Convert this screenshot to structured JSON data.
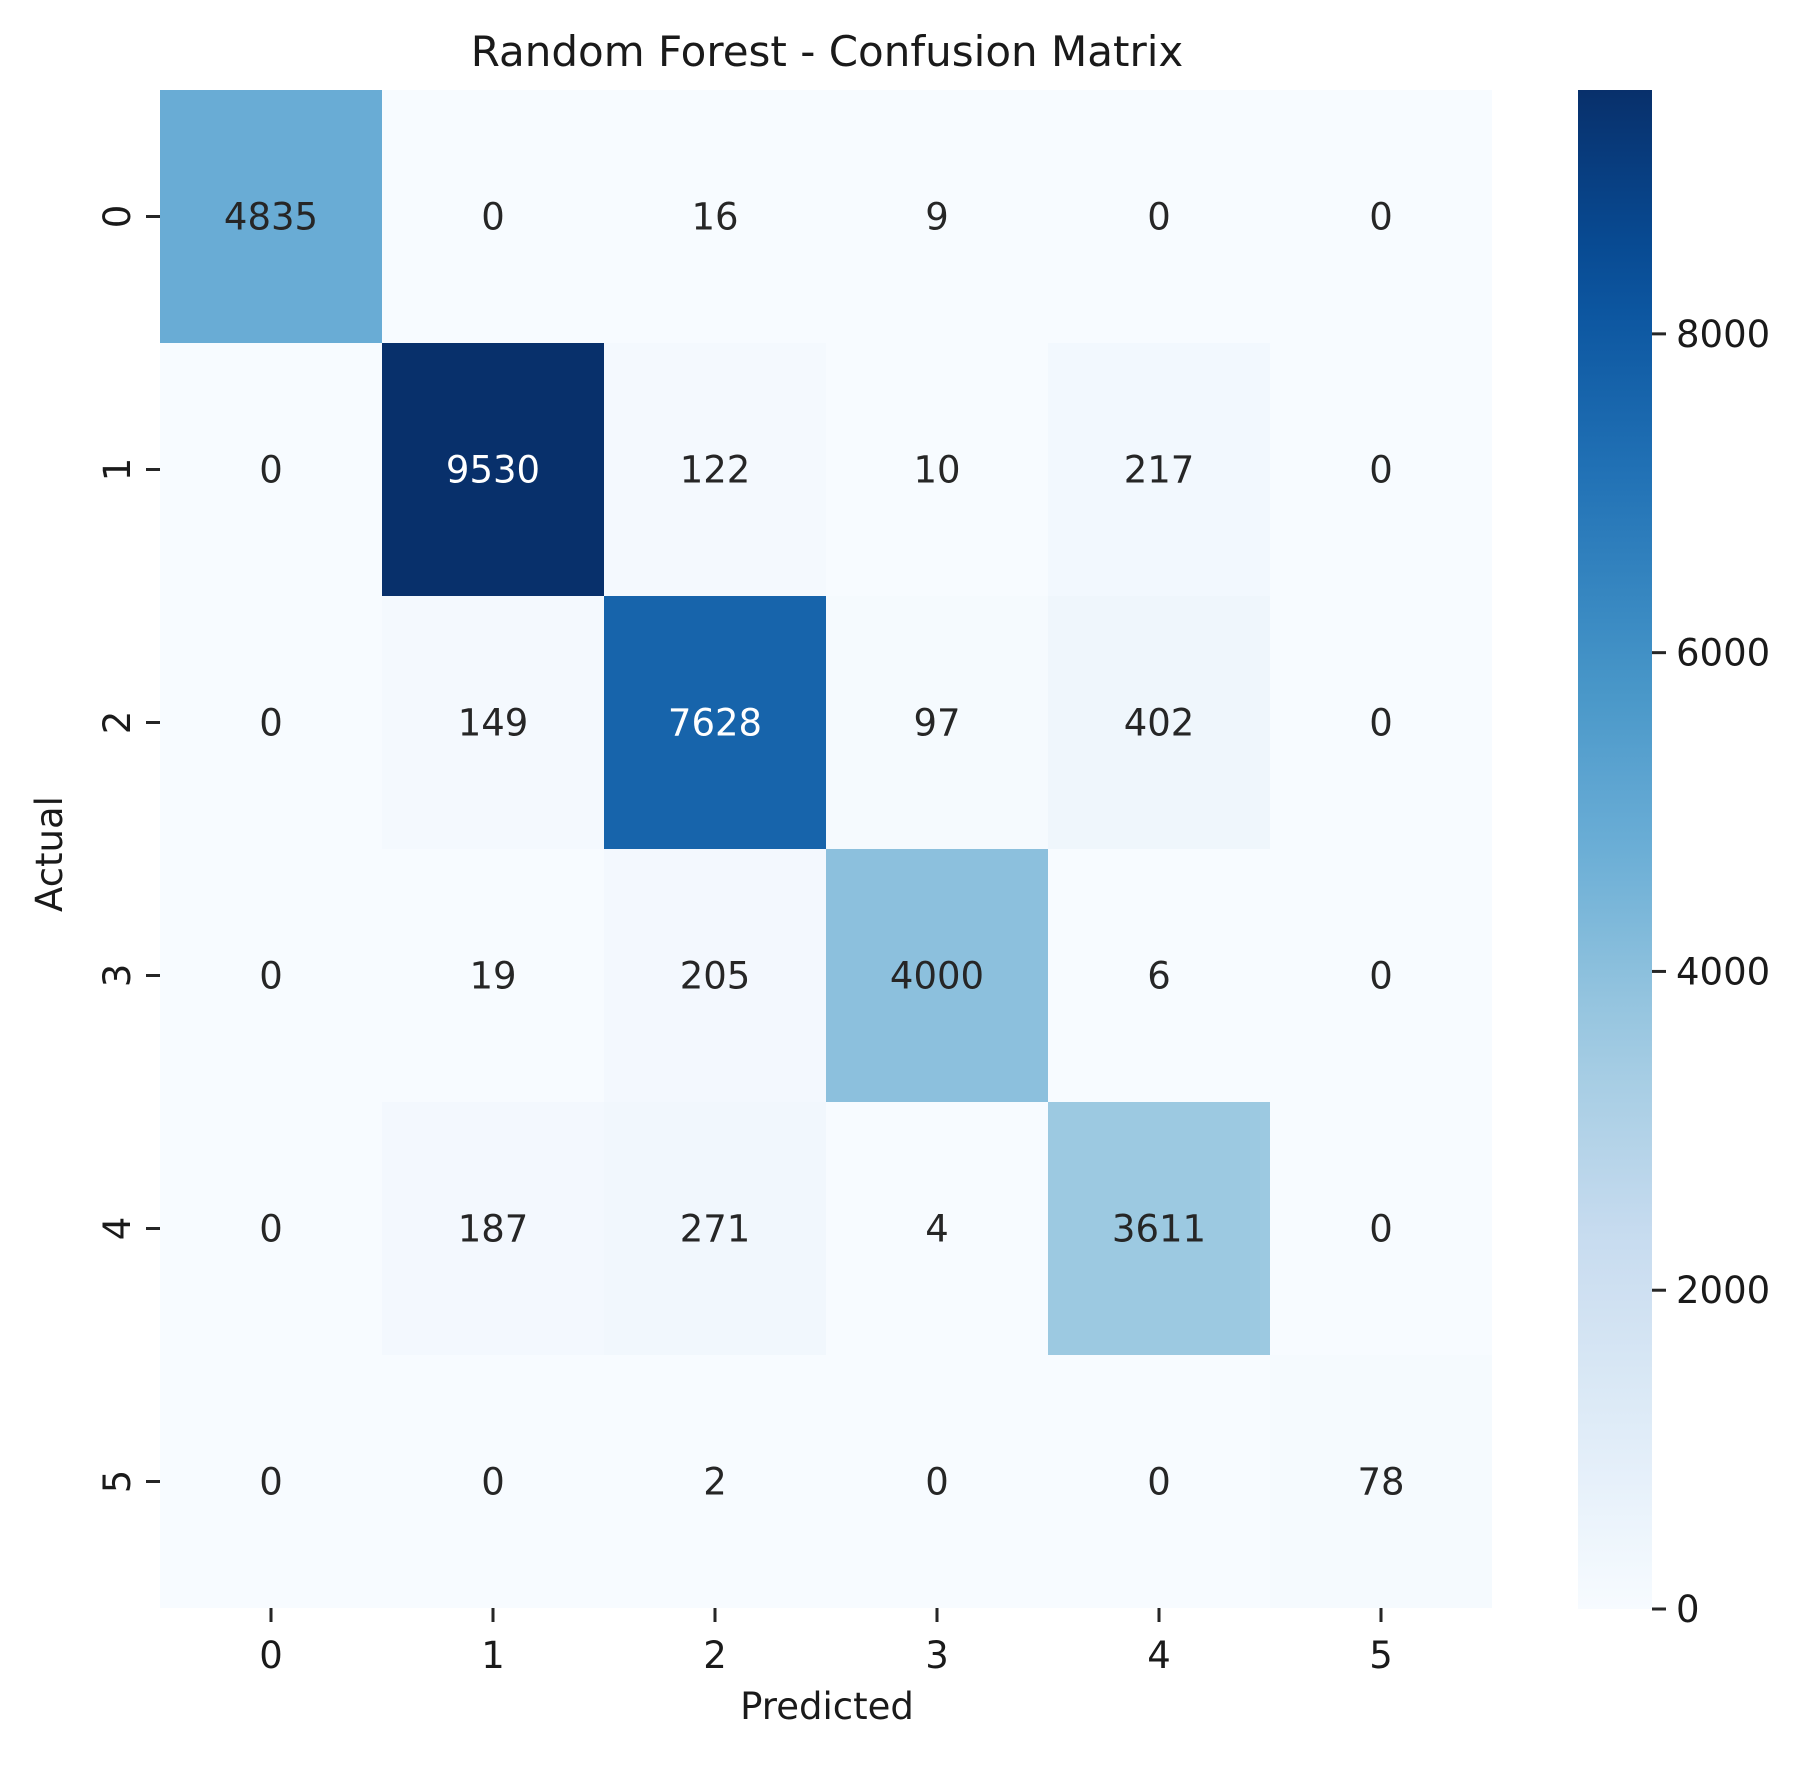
{
  "chart_data": {
    "type": "heatmap",
    "title": "Random Forest - Confusion Matrix",
    "xlabel": "Predicted",
    "ylabel": "Actual",
    "x_categories": [
      "0",
      "1",
      "2",
      "3",
      "4",
      "5"
    ],
    "y_categories": [
      "0",
      "1",
      "2",
      "3",
      "4",
      "5"
    ],
    "values": [
      [
        4835,
        0,
        16,
        9,
        0,
        0
      ],
      [
        0,
        9530,
        122,
        10,
        217,
        0
      ],
      [
        0,
        149,
        7628,
        97,
        402,
        0
      ],
      [
        0,
        19,
        205,
        4000,
        6,
        0
      ],
      [
        0,
        187,
        271,
        4,
        3611,
        0
      ],
      [
        0,
        0,
        2,
        0,
        0,
        78
      ]
    ],
    "colormap": "Blues",
    "color_range": [
      0,
      9530
    ],
    "colorbar_ticks": [
      "0",
      "2000",
      "4000",
      "6000",
      "8000"
    ],
    "colorbar_tick_values": [
      0,
      2000,
      4000,
      6000,
      8000
    ],
    "annotations": "cell counts shown in each cell",
    "grid": false
  }
}
